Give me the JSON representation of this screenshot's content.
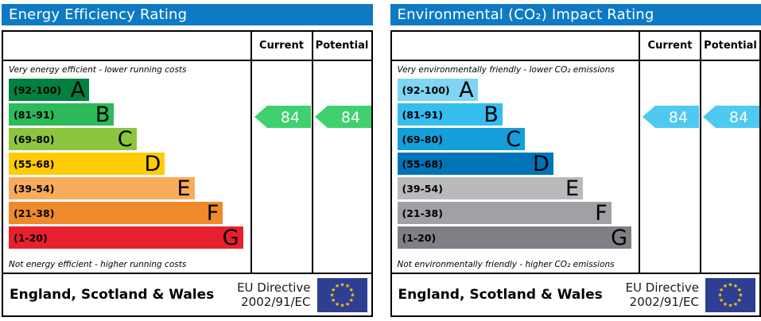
{
  "theme": {
    "header_color": "#0e7ac4",
    "flag_blue": "#2e3e92",
    "star_yellow": "#ffcc00"
  },
  "chart_data": [
    {
      "type": "bar",
      "title": "Energy Efficiency Rating",
      "columns": [
        "Current",
        "Potential"
      ],
      "top_label": "Very energy efficient - lower running costs",
      "bottom_label": "Not energy efficient - higher running costs",
      "bands": [
        {
          "letter": "A",
          "range_label": "(92-100)",
          "range": [
            92,
            100
          ],
          "color": "#02803f",
          "width_pct": 34
        },
        {
          "letter": "B",
          "range_label": "(81-91)",
          "range": [
            81,
            91
          ],
          "color": "#2cba5a",
          "width_pct": 44.5
        },
        {
          "letter": "C",
          "range_label": "(69-80)",
          "range": [
            69,
            80
          ],
          "color": "#8cc63f",
          "width_pct": 54
        },
        {
          "letter": "D",
          "range_label": "(55-68)",
          "range": [
            55,
            68
          ],
          "color": "#ffcb05",
          "width_pct": 66
        },
        {
          "letter": "E",
          "range_label": "(39-54)",
          "range": [
            39,
            54
          ],
          "color": "#f9ab5c",
          "width_pct": 78.5
        },
        {
          "letter": "F",
          "range_label": "(21-38)",
          "range": [
            21,
            38
          ],
          "color": "#ef8a2c",
          "width_pct": 90.5
        },
        {
          "letter": "G",
          "range_label": "(1-20)",
          "range": [
            1,
            20
          ],
          "color": "#e8202e",
          "width_pct": 99
        }
      ],
      "current": 84,
      "potential": 84,
      "rating_band": "B",
      "arrow_color": "#3ed16e",
      "footer_region": "England, Scotland & Wales",
      "footer_directive_line1": "EU Directive",
      "footer_directive_line2": "2002/91/EC"
    },
    {
      "type": "bar",
      "title": "Environmental (CO₂) Impact Rating",
      "columns": [
        "Current",
        "Potential"
      ],
      "top_label": "Very environmentally friendly - lower CO₂ emissions",
      "bottom_label": "Not environmentally friendly - higher CO₂ emissions",
      "bands": [
        {
          "letter": "A",
          "range_label": "(92-100)",
          "range": [
            92,
            100
          ],
          "color": "#7fd5f2",
          "width_pct": 34
        },
        {
          "letter": "B",
          "range_label": "(81-91)",
          "range": [
            81,
            91
          ],
          "color": "#35bdee",
          "width_pct": 44.5
        },
        {
          "letter": "C",
          "range_label": "(69-80)",
          "range": [
            69,
            80
          ],
          "color": "#149fda",
          "width_pct": 54
        },
        {
          "letter": "D",
          "range_label": "(55-68)",
          "range": [
            55,
            68
          ],
          "color": "#0074b8",
          "width_pct": 66
        },
        {
          "letter": "E",
          "range_label": "(39-54)",
          "range": [
            39,
            54
          ],
          "color": "#b9babc",
          "width_pct": 78.5
        },
        {
          "letter": "F",
          "range_label": "(21-38)",
          "range": [
            21,
            38
          ],
          "color": "#9fa1a4",
          "width_pct": 90.5
        },
        {
          "letter": "G",
          "range_label": "(1-20)",
          "range": [
            1,
            20
          ],
          "color": "#7f8085",
          "width_pct": 99
        }
      ],
      "current": 84,
      "potential": 84,
      "rating_band": "B",
      "arrow_color": "#4ec9f1",
      "footer_region": "England, Scotland & Wales",
      "footer_directive_line1": "EU Directive",
      "footer_directive_line2": "2002/91/EC"
    }
  ]
}
